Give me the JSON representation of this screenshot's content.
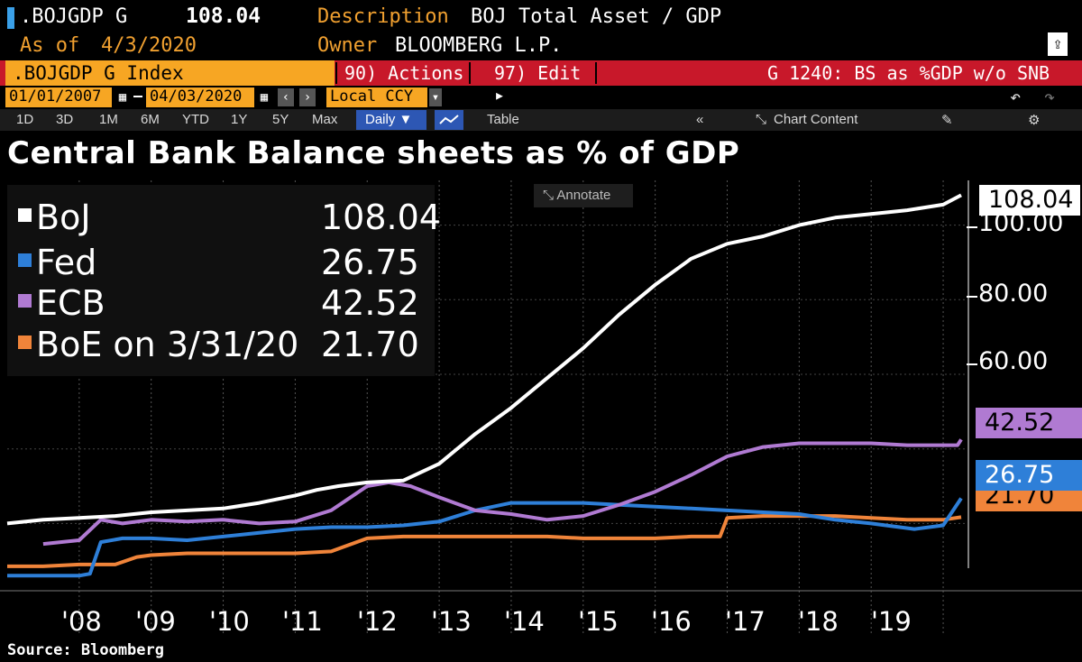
{
  "header": {
    "ticker_short": ".BOJGDP G",
    "value": "108.04",
    "description_label": "Description",
    "description": "BOJ Total Asset / GDP",
    "as_of_label": "As of",
    "as_of": "4/3/2020",
    "owner_label": "Owner",
    "owner": "BLOOMBERG L.P."
  },
  "toolbar": {
    "ticker_index": ".BOJGDP G Index",
    "actions": "90) Actions ▸",
    "edit": "97) Edit ▸",
    "chart_name": "G 1240: BS as %GDP w/o SNB",
    "start_date": "01/01/2007",
    "end_date": "04/03/2020",
    "currency": "Local CCY",
    "ranges": [
      "1D",
      "3D",
      "1M",
      "6M",
      "YTD",
      "1Y",
      "5Y",
      "Max"
    ],
    "frequency": "Daily ▼",
    "table": "Table",
    "chart_content": "Chart Content",
    "annotate": "Annotate"
  },
  "colors": {
    "boj": "#ffffff",
    "fed": "#2e7fd8",
    "ecb": "#b07ad2",
    "boe": "#f0843a",
    "bloomberg_orange": "#f7a623",
    "bloomberg_red": "#c8182a"
  },
  "chart_data": {
    "type": "line",
    "title": "Central Bank Balance sheets as % of GDP",
    "xlabel": "",
    "ylabel": "",
    "x_tick_labels": [
      "'08",
      "'09",
      "'10",
      "'11",
      "'12",
      "'13",
      "'14",
      "'15",
      "'16",
      "'17",
      "'18",
      "'19"
    ],
    "y_tick_labels": [
      "100.00",
      "80.00",
      "60.00"
    ],
    "ylim": [
      8,
      112
    ],
    "xlim": [
      2007.0,
      2020.3
    ],
    "series": [
      {
        "name": "BoJ",
        "last_value": "108.04",
        "x": [
          2007.0,
          2007.5,
          2008.0,
          2008.5,
          2009.0,
          2009.5,
          2010.0,
          2010.5,
          2011.0,
          2011.3,
          2011.6,
          2012.0,
          2012.5,
          2013.0,
          2013.5,
          2014.0,
          2014.5,
          2015.0,
          2015.5,
          2016.0,
          2016.5,
          2017.0,
          2017.5,
          2018.0,
          2018.5,
          2019.0,
          2019.5,
          2020.0,
          2020.25
        ],
        "y": [
          20.0,
          21.0,
          21.5,
          22.0,
          23.0,
          23.5,
          24.0,
          25.5,
          27.5,
          29.0,
          30.0,
          31.0,
          31.5,
          36.0,
          44.0,
          51.0,
          59.0,
          67.0,
          76.0,
          84.0,
          91.0,
          95.0,
          97.0,
          100.0,
          102.0,
          103.0,
          104.0,
          105.5,
          108.04
        ]
      },
      {
        "name": "Fed",
        "last_value": "26.75",
        "x": [
          2007.0,
          2008.0,
          2008.15,
          2008.3,
          2008.6,
          2009.0,
          2009.5,
          2010.0,
          2010.5,
          2011.0,
          2011.5,
          2012.0,
          2012.5,
          2013.0,
          2013.5,
          2014.0,
          2014.5,
          2015.0,
          2015.5,
          2016.0,
          2016.5,
          2017.0,
          2017.5,
          2018.0,
          2018.5,
          2019.0,
          2019.6,
          2020.0,
          2020.25
        ],
        "y": [
          6.0,
          6.0,
          6.5,
          15.0,
          16.0,
          16.0,
          15.5,
          16.5,
          17.5,
          18.5,
          19.0,
          19.0,
          19.5,
          20.5,
          23.5,
          25.5,
          25.5,
          25.5,
          25.0,
          24.5,
          24.0,
          23.5,
          23.0,
          22.5,
          21.0,
          20.0,
          18.5,
          19.5,
          26.75
        ]
      },
      {
        "name": "ECB",
        "last_value": "42.52",
        "x": [
          2007.5,
          2008.0,
          2008.3,
          2008.6,
          2009.0,
          2009.5,
          2010.0,
          2010.5,
          2011.0,
          2011.5,
          2012.0,
          2012.3,
          2012.6,
          2013.0,
          2013.5,
          2014.0,
          2014.5,
          2015.0,
          2015.5,
          2016.0,
          2016.5,
          2017.0,
          2017.5,
          2018.0,
          2018.5,
          2019.0,
          2019.5,
          2020.0,
          2020.2,
          2020.25
        ],
        "y": [
          14.5,
          15.5,
          21.0,
          20.0,
          21.0,
          20.5,
          21.0,
          20.0,
          20.5,
          23.5,
          30.0,
          31.0,
          30.0,
          27.0,
          23.5,
          22.5,
          21.0,
          22.0,
          25.0,
          28.5,
          33.0,
          38.0,
          40.5,
          41.5,
          41.5,
          41.5,
          41.0,
          41.0,
          41.0,
          42.52
        ]
      },
      {
        "name": "BoE on 3/31/20",
        "last_value": "21.70",
        "x": [
          2007.0,
          2007.5,
          2008.0,
          2008.5,
          2008.8,
          2009.0,
          2009.5,
          2010.0,
          2010.5,
          2011.0,
          2011.5,
          2012.0,
          2012.5,
          2013.0,
          2013.5,
          2014.0,
          2014.5,
          2015.0,
          2015.5,
          2016.0,
          2016.5,
          2016.9,
          2017.0,
          2017.5,
          2018.0,
          2018.5,
          2019.0,
          2019.5,
          2020.0,
          2020.25
        ],
        "y": [
          8.5,
          8.5,
          9.0,
          9.0,
          11.0,
          11.5,
          12.0,
          12.0,
          12.0,
          12.0,
          12.5,
          16.0,
          16.5,
          16.5,
          16.5,
          16.5,
          16.5,
          16.0,
          16.0,
          16.0,
          16.5,
          16.5,
          21.5,
          22.0,
          22.0,
          22.0,
          21.5,
          21.0,
          21.0,
          21.7
        ]
      }
    ],
    "source": "Source: Bloomberg"
  }
}
